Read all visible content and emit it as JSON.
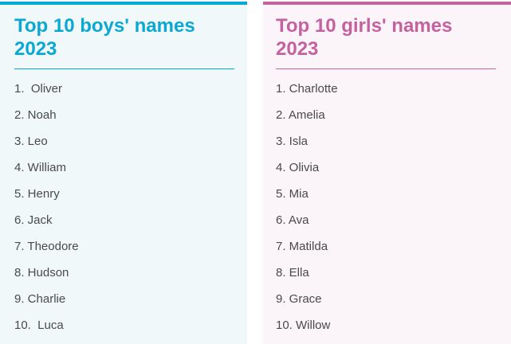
{
  "boys": {
    "title": "Top 10 boys' names\n2023",
    "accent": "#00a9d4",
    "items": [
      "1.  Oliver",
      "2. Noah",
      "3. Leo",
      "4. William",
      "5. Henry",
      "6. Jack",
      "7. Theodore",
      "8. Hudson",
      "9. Charlie",
      "10.  Luca"
    ]
  },
  "girls": {
    "title": "Top 10 girls' names\n2023",
    "accent": "#c5619f",
    "items": [
      "1. Charlotte",
      "2. Amelia",
      "3. Isla",
      "4. Olivia",
      "5. Mia",
      "6. Ava",
      "7. Matilda",
      "8. Ella",
      "9. Grace",
      "10. Willow"
    ]
  }
}
